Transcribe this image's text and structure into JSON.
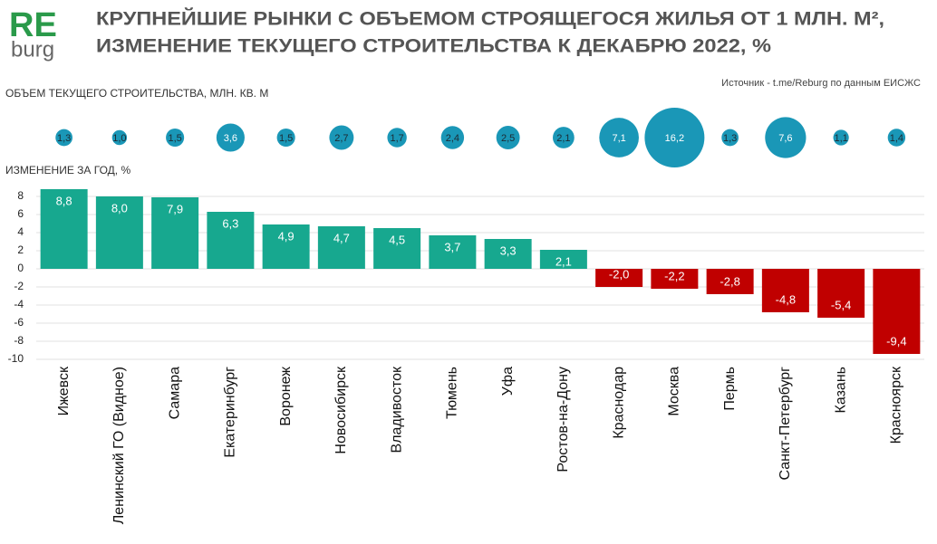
{
  "header": {
    "logo_top": "RE",
    "logo_bottom": "burg",
    "title": [
      "КРУПНЕЙШИЕ РЫНКИ С ОБЪЕМОМ СТРОЯЩЕГОСЯ ЖИЛЬЯ ОТ 1 МЛН. М², ",
      "ИЗМЕНЕНИЕ ТЕКУЩЕГО СТРОИТЕЛЬСТВА  К ДЕКАБРЮ 2022, %"
    ],
    "source": "Источник - t.me/Reburg по данным ЕИСЖС"
  },
  "chart_data": [
    {
      "type": "bubble",
      "y_label": "ОБЪЕМ ТЕКУЩЕГО СТРОИТЕЛЬСТВА, МЛН. КВ. М",
      "values": [
        1.3,
        1.0,
        1.5,
        3.6,
        1.5,
        2.7,
        1.7,
        2.4,
        2.5,
        2.1,
        7.1,
        16.2,
        1.3,
        7.6,
        1.1,
        1.4
      ],
      "value_labels": [
        "1,3",
        "1,0",
        "1,5",
        "3,6",
        "1,5",
        "2,7",
        "1,7",
        "2,4",
        "2,5",
        "2,1",
        "7,1",
        "16,2",
        "1,3",
        "7,6",
        "1,1",
        "1,4"
      ],
      "color": "#1a97b7"
    },
    {
      "type": "bar",
      "y_label": "ИЗМЕНЕНИЕ ЗА ГОД, %",
      "categories": [
        "Ижевск",
        "Ленинский ГО (Видное)",
        "Самара",
        "Екатеринбург",
        "Воронеж",
        "Новосибирск",
        "Владивосток",
        "Тюмень",
        "Уфа",
        "Ростов-на-Дону",
        "Краснодар",
        "Москва",
        "Пермь",
        "Санкт-Петербург",
        "Казань",
        "Красноярск"
      ],
      "values": [
        8.8,
        8.0,
        7.9,
        6.3,
        4.9,
        4.7,
        4.5,
        3.7,
        3.3,
        2.1,
        -2.0,
        -2.2,
        -2.8,
        -4.8,
        -5.4,
        -9.4
      ],
      "value_labels": [
        "8,8",
        "8,0",
        "7,9",
        "6,3",
        "4,9",
        "4,7",
        "4,5",
        "3,7",
        "3,3",
        "2,1",
        "-2,0",
        "-2,2",
        "-2,8",
        "-4,8",
        "-5,4",
        "-9,4"
      ],
      "positive_color": "#17a88f",
      "negative_color": "#c00000",
      "ylim": [
        -10,
        9
      ],
      "yticks": [
        -10,
        -8,
        -6,
        -4,
        -2,
        0,
        2,
        4,
        6,
        8
      ],
      "grid": true
    }
  ]
}
